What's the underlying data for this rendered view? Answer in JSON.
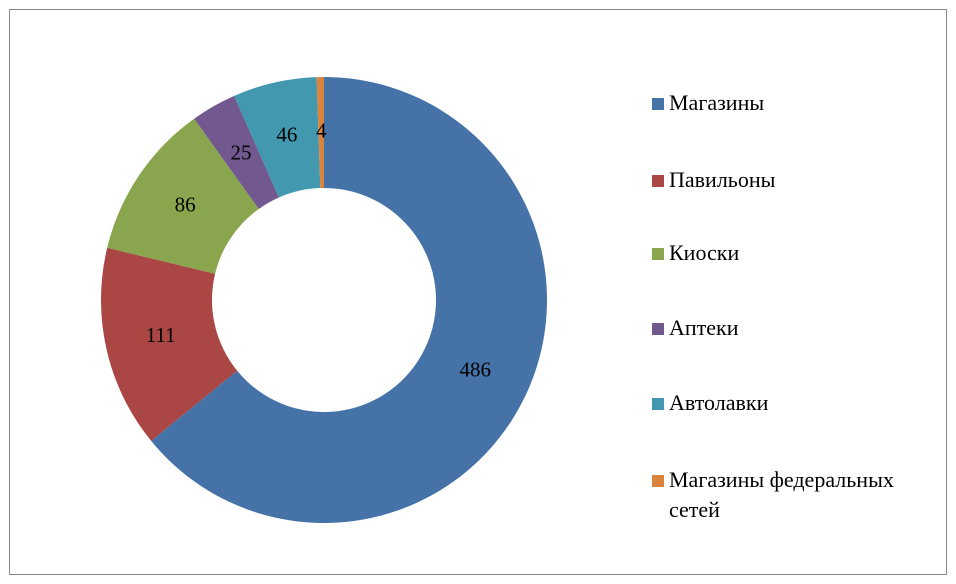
{
  "chart_data": {
    "type": "donut",
    "categories": [
      "Магазины",
      "Павильоны",
      "Киоски",
      "Аптеки",
      "Автолавки",
      "Магазины федеральных сетей"
    ],
    "values": [
      486,
      111,
      86,
      25,
      46,
      4
    ],
    "colors": [
      "#4572a7",
      "#aa4643",
      "#89a54e",
      "#71588f",
      "#4198af",
      "#db843d"
    ],
    "legend": "right"
  }
}
